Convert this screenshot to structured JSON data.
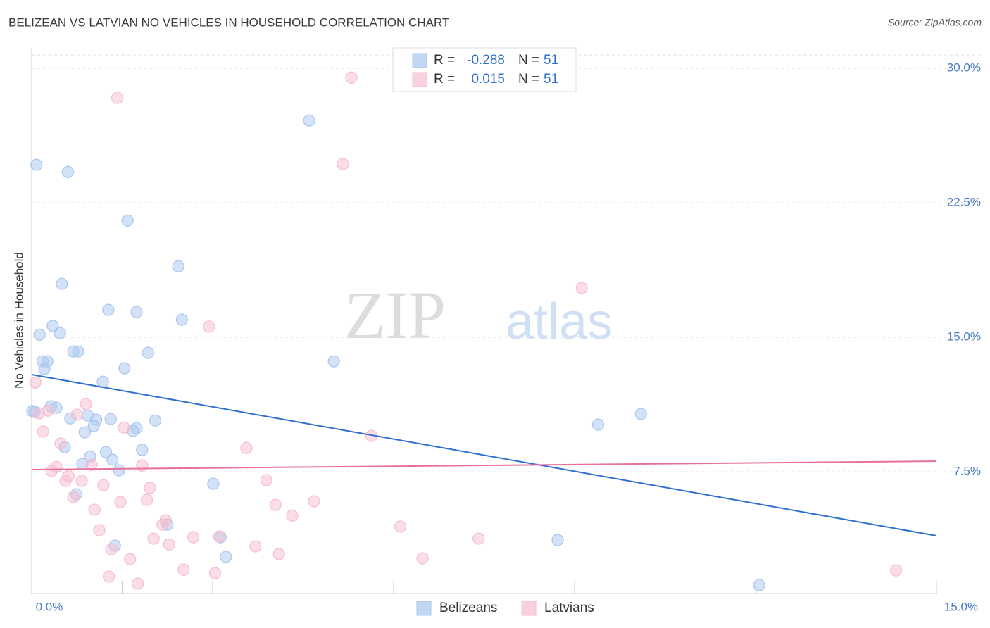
{
  "chart_data": {
    "type": "scatter",
    "title": "BELIZEAN VS LATVIAN NO VEHICLES IN HOUSEHOLD CORRELATION CHART",
    "source": "Source: ZipAtlas.com",
    "ylabel": "No Vehicles in Household",
    "watermark": [
      "ZIP",
      "atlas"
    ],
    "xlim": [
      0,
      15
    ],
    "ylim": [
      0.71,
      31.14
    ],
    "xticks": [
      {
        "value": 0,
        "label": "0.0%"
      },
      {
        "value": 15,
        "label": "15.0%"
      }
    ],
    "xminor_ticks": [
      1.5,
      3,
      4.5,
      6,
      7.5,
      9,
      10.5,
      12,
      13.5,
      15
    ],
    "yticks": [
      {
        "value": 7.5,
        "label": "7.5%"
      },
      {
        "value": 15,
        "label": "15.0%"
      },
      {
        "value": 22.5,
        "label": "22.5%"
      },
      {
        "value": 30,
        "label": "30.0%"
      }
    ],
    "grid": true,
    "r_label": "R =",
    "n_label": "N =",
    "series": [
      {
        "name": "Belizeans",
        "color": "#a8c6ee",
        "line_color": "#2f6fd0",
        "r": -0.288,
        "n": 51,
        "trend": {
          "x": [
            0,
            15
          ],
          "y": [
            12.92,
            3.93
          ]
        },
        "x": [
          0.08,
          0.6,
          4.6,
          1.59,
          2.43,
          0.5,
          1.27,
          1.74,
          2.49,
          0.13,
          0.35,
          0.47,
          0.69,
          0.77,
          1.93,
          5.01,
          0.18,
          0.26,
          0.21,
          1.54,
          1.18,
          0.05,
          0.32,
          0.41,
          0.64,
          0.93,
          1.07,
          1.31,
          1.03,
          2.05,
          1.74,
          1.68,
          0.88,
          0.55,
          1.23,
          1.83,
          0.97,
          1.34,
          0.84,
          1.45,
          9.39,
          10.1,
          3.01,
          0.74,
          2.25,
          3.13,
          8.72,
          1.38,
          3.22,
          12.06,
          0.01
        ],
        "y": [
          24.62,
          24.22,
          27.09,
          21.51,
          18.96,
          17.98,
          16.53,
          16.41,
          15.98,
          15.15,
          15.63,
          15.23,
          14.21,
          14.21,
          14.13,
          13.66,
          13.66,
          13.66,
          13.23,
          13.27,
          12.52,
          10.84,
          11.15,
          11.07,
          10.48,
          10.64,
          10.4,
          10.44,
          10.05,
          10.36,
          9.93,
          9.78,
          9.7,
          8.87,
          8.6,
          8.72,
          8.36,
          8.17,
          7.93,
          7.58,
          10.13,
          10.72,
          6.83,
          6.24,
          4.55,
          3.85,
          3.69,
          3.38,
          2.75,
          1.18,
          10.88
        ]
      },
      {
        "name": "Latvians",
        "color": "#f6bccf",
        "line_color": "#e8709a",
        "r": 0.015,
        "n": 51,
        "trend": {
          "x": [
            0,
            15
          ],
          "y": [
            7.62,
            8.09
          ]
        },
        "x": [
          5.3,
          1.42,
          5.16,
          9.12,
          2.94,
          0.06,
          0.12,
          0.27,
          0.9,
          0.75,
          0.19,
          1.53,
          5.63,
          3.56,
          0.48,
          0.33,
          0.41,
          1.83,
          0.99,
          0.56,
          0.61,
          0.83,
          1.19,
          1.96,
          3.89,
          0.69,
          1.04,
          1.47,
          1.91,
          4.04,
          4.68,
          4.32,
          2.22,
          1.12,
          6.11,
          2.68,
          2.02,
          3.11,
          7.41,
          1.32,
          2.28,
          3.71,
          4.1,
          1.63,
          6.48,
          2.52,
          3.04,
          1.28,
          1.76,
          14.33,
          2.17
        ],
        "y": [
          29.48,
          28.35,
          24.66,
          17.75,
          15.59,
          12.48,
          10.76,
          10.91,
          11.27,
          10.68,
          9.74,
          9.97,
          9.5,
          8.83,
          9.07,
          7.54,
          7.77,
          7.85,
          7.89,
          6.99,
          7.26,
          6.99,
          6.75,
          6.6,
          7.03,
          6.09,
          5.38,
          5.81,
          5.93,
          5.65,
          5.85,
          5.06,
          4.79,
          4.24,
          4.44,
          3.85,
          3.77,
          3.89,
          3.77,
          3.18,
          3.45,
          3.34,
          2.91,
          2.63,
          2.67,
          2.04,
          1.85,
          1.65,
          1.26,
          2.0,
          4.55
        ]
      }
    ]
  }
}
